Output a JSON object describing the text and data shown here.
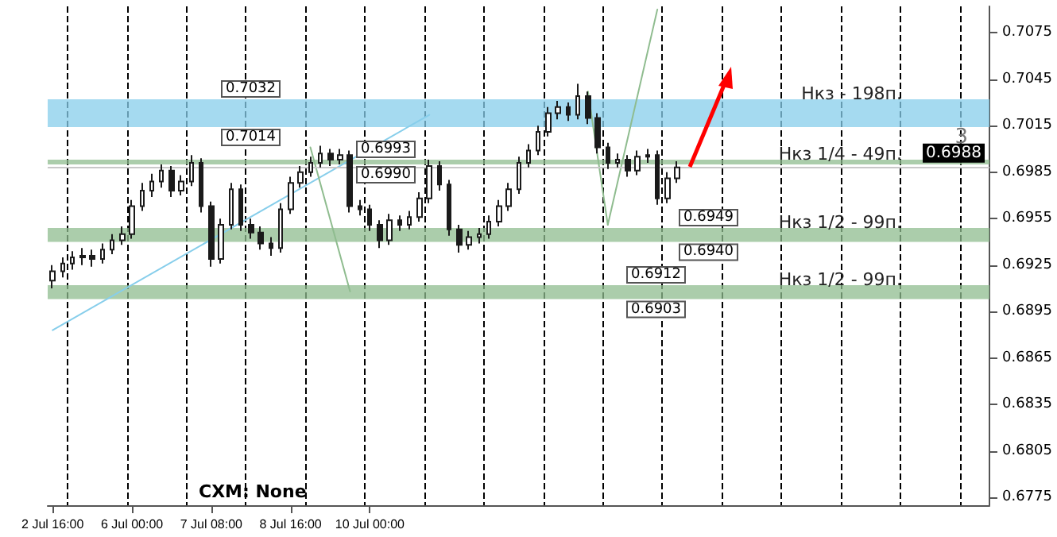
{
  "chart_data": {
    "type": "candlestick",
    "color": "#1a1a1a",
    "categories": [
      "2 Jul 16:00",
      null,
      null,
      null,
      null,
      null,
      null,
      null,
      "6 Jul 00:00",
      null,
      null,
      null,
      null,
      null,
      null,
      null,
      "7 Jul 08:00",
      null,
      null,
      null,
      null,
      null,
      null,
      null,
      "8 Jul 16:00",
      null,
      null,
      null,
      null,
      null,
      null,
      null,
      "10 Jul 00:00",
      null,
      null,
      null,
      null,
      null,
      null,
      null,
      null,
      null,
      null,
      null,
      null,
      null,
      null,
      null,
      null,
      null,
      null,
      null,
      null,
      null,
      null,
      null,
      null,
      null,
      null,
      null,
      null,
      null,
      null,
      null,
      null,
      null,
      null,
      null,
      null,
      null,
      null,
      null,
      null,
      null,
      null,
      null,
      null,
      null,
      null,
      null,
      null,
      null,
      null,
      null,
      null,
      null,
      null,
      null,
      null,
      null,
      null,
      null,
      null,
      null,
      null
    ],
    "ohlc": [
      [
        0.6915,
        0.6925,
        0.691,
        0.6921
      ],
      [
        0.6921,
        0.693,
        0.6917,
        0.6926
      ],
      [
        0.6926,
        0.6934,
        0.6922,
        0.693
      ],
      [
        0.693,
        0.6936,
        0.6925,
        0.6931
      ],
      [
        0.6931,
        0.6935,
        0.6924,
        0.6929
      ],
      [
        0.6929,
        0.6939,
        0.6926,
        0.6935
      ],
      [
        0.6935,
        0.6945,
        0.6932,
        0.6941
      ],
      [
        0.6941,
        0.695,
        0.6938,
        0.6945
      ],
      [
        0.6945,
        0.6967,
        0.6942,
        0.6963
      ],
      [
        0.6963,
        0.6978,
        0.696,
        0.6973
      ],
      [
        0.6973,
        0.6984,
        0.6969,
        0.6979
      ],
      [
        0.6979,
        0.699,
        0.6975,
        0.6986
      ],
      [
        0.6986,
        0.6989,
        0.6969,
        0.6973
      ],
      [
        0.6973,
        0.6983,
        0.697,
        0.6979
      ],
      [
        0.6979,
        0.6996,
        0.6976,
        0.6991
      ],
      [
        0.6991,
        0.6994,
        0.6959,
        0.6963
      ],
      [
        0.6963,
        0.6966,
        0.6924,
        0.6929
      ],
      [
        0.6929,
        0.6955,
        0.6926,
        0.6951
      ],
      [
        0.6951,
        0.6978,
        0.6948,
        0.6974
      ],
      [
        0.6974,
        0.6977,
        0.6947,
        0.6951
      ],
      [
        0.6951,
        0.6955,
        0.6942,
        0.6946
      ],
      [
        0.6946,
        0.695,
        0.6935,
        0.6939
      ],
      [
        0.6939,
        0.6943,
        0.6931,
        0.6936
      ],
      [
        0.6936,
        0.6965,
        0.6933,
        0.6961
      ],
      [
        0.6961,
        0.6982,
        0.6958,
        0.6978
      ],
      [
        0.6978,
        0.6989,
        0.6975,
        0.6985
      ],
      [
        0.6985,
        0.6995,
        0.6982,
        0.6991
      ],
      [
        0.6991,
        0.7002,
        0.6988,
        0.6997
      ],
      [
        0.6997,
        0.7,
        0.6989,
        0.6993
      ],
      [
        0.6993,
        0.7,
        0.699,
        0.6996
      ],
      [
        0.6996,
        0.6999,
        0.6959,
        0.6963
      ],
      [
        0.6963,
        0.6967,
        0.6957,
        0.6961
      ],
      [
        0.6961,
        0.6964,
        0.6947,
        0.6951
      ],
      [
        0.6951,
        0.6954,
        0.6936,
        0.6941
      ],
      [
        0.6941,
        0.6958,
        0.6938,
        0.6954
      ],
      [
        0.6954,
        0.6957,
        0.6947,
        0.6951
      ],
      [
        0.6951,
        0.696,
        0.6948,
        0.6956
      ],
      [
        0.6956,
        0.6972,
        0.6953,
        0.6968
      ],
      [
        0.6968,
        0.6993,
        0.6965,
        0.6989
      ],
      [
        0.6989,
        0.6992,
        0.6973,
        0.6977
      ],
      [
        0.6977,
        0.698,
        0.6944,
        0.6948
      ],
      [
        0.6948,
        0.6951,
        0.6933,
        0.6938
      ],
      [
        0.6938,
        0.6947,
        0.6935,
        0.6943
      ],
      [
        0.6943,
        0.6949,
        0.6939,
        0.6945
      ],
      [
        0.6945,
        0.6957,
        0.6942,
        0.6953
      ],
      [
        0.6953,
        0.6967,
        0.695,
        0.6963
      ],
      [
        0.6963,
        0.6978,
        0.696,
        0.6974
      ],
      [
        0.6974,
        0.6995,
        0.6971,
        0.6991
      ],
      [
        0.6991,
        0.7003,
        0.6988,
        0.6999
      ],
      [
        0.6999,
        0.7015,
        0.6996,
        0.7011
      ],
      [
        0.7011,
        0.7027,
        0.7008,
        0.7023
      ],
      [
        0.7023,
        0.7031,
        0.7019,
        0.7027
      ],
      [
        0.7027,
        0.703,
        0.7018,
        0.7022
      ],
      [
        0.7022,
        0.7042,
        0.7019,
        0.7034
      ],
      [
        0.7034,
        0.7037,
        0.7016,
        0.702
      ],
      [
        0.702,
        0.7023,
        0.6997,
        0.7001
      ],
      [
        0.7001,
        0.7004,
        0.6987,
        0.6991
      ],
      [
        0.6991,
        0.6997,
        0.6988,
        0.6993
      ],
      [
        0.6993,
        0.6996,
        0.6982,
        0.6986
      ],
      [
        0.6986,
        0.6999,
        0.6983,
        0.6995
      ],
      [
        0.6995,
        0.7,
        0.6991,
        0.6996
      ],
      [
        0.6996,
        0.6999,
        0.6964,
        0.6968
      ],
      [
        0.6968,
        0.6985,
        0.6965,
        0.6981
      ],
      [
        0.6981,
        0.6992,
        0.6978,
        0.6988
      ],
      null,
      null,
      null,
      null,
      null,
      null,
      null,
      null,
      null,
      null,
      null,
      null,
      null,
      null,
      null,
      null,
      null,
      null,
      null,
      null,
      null,
      null,
      null,
      null,
      null,
      null,
      null,
      null,
      null,
      null,
      null
    ],
    "series": [
      {
        "type": "line",
        "color": "#87ceeb",
        "values": [
          0.6883,
          null,
          null,
          null,
          null,
          null,
          null,
          null,
          null,
          null,
          null,
          null,
          null,
          null,
          null,
          null,
          null,
          null,
          null,
          null,
          null,
          null,
          null,
          null,
          null,
          null,
          null,
          null,
          null,
          null,
          null,
          null,
          null,
          null,
          null,
          null,
          null,
          null,
          0.7022,
          null,
          null,
          null,
          null,
          null,
          null,
          null,
          null,
          null,
          null,
          null,
          null,
          null,
          null,
          null,
          null,
          null,
          null,
          null,
          null,
          null,
          null,
          null,
          null,
          null,
          null,
          null,
          null,
          null,
          null,
          null,
          null,
          null,
          null,
          null,
          null,
          null,
          null,
          null,
          null,
          null,
          null,
          null,
          null,
          null,
          null,
          null,
          null,
          null,
          null,
          null,
          null,
          null,
          null,
          null,
          null
        ]
      },
      {
        "type": "line",
        "color": "#8fbc8f",
        "values": [
          null,
          null,
          null,
          null,
          null,
          null,
          null,
          null,
          null,
          null,
          null,
          null,
          null,
          null,
          null,
          null,
          null,
          null,
          null,
          null,
          null,
          null,
          null,
          null,
          null,
          null,
          0.7001,
          null,
          null,
          null,
          0.6908,
          null,
          null,
          null,
          null,
          null,
          null,
          null,
          null,
          null,
          null,
          null,
          null,
          null,
          null,
          null,
          null,
          null,
          null,
          null,
          null,
          null,
          null,
          null,
          null,
          null,
          null,
          null,
          null,
          null,
          null,
          null,
          null,
          null,
          null,
          null,
          null,
          null,
          null,
          null,
          null,
          null,
          null,
          null,
          null,
          null,
          null,
          null,
          null,
          null,
          null,
          null,
          null,
          null,
          null,
          null,
          null,
          null,
          null,
          null,
          null,
          null,
          null,
          null,
          null
        ]
      },
      {
        "type": "line",
        "color": "#8fbc8f",
        "values": [
          null,
          null,
          null,
          null,
          null,
          null,
          null,
          null,
          null,
          null,
          null,
          null,
          null,
          null,
          null,
          null,
          null,
          null,
          null,
          null,
          null,
          null,
          null,
          null,
          null,
          null,
          null,
          null,
          null,
          null,
          null,
          null,
          null,
          null,
          null,
          null,
          null,
          null,
          null,
          null,
          null,
          null,
          null,
          null,
          null,
          null,
          null,
          null,
          null,
          null,
          null,
          null,
          null,
          null,
          0.7037,
          null,
          0.6951,
          null,
          null,
          null,
          null,
          null,
          null,
          null,
          null,
          null,
          null,
          null,
          null,
          null,
          null,
          null,
          null,
          null,
          null,
          null,
          null,
          null,
          null,
          null,
          null,
          null,
          null,
          null,
          null,
          null,
          null,
          null,
          null,
          null,
          null,
          null,
          null,
          null,
          null
        ]
      },
      {
        "type": "line",
        "color": "#8fbc8f",
        "values": [
          null,
          null,
          null,
          null,
          null,
          null,
          null,
          null,
          null,
          null,
          null,
          null,
          null,
          null,
          null,
          null,
          null,
          null,
          null,
          null,
          null,
          null,
          null,
          null,
          null,
          null,
          null,
          null,
          null,
          null,
          null,
          null,
          null,
          null,
          null,
          null,
          null,
          null,
          null,
          null,
          null,
          null,
          null,
          null,
          null,
          null,
          null,
          null,
          null,
          null,
          null,
          null,
          null,
          null,
          null,
          null,
          0.6951,
          null,
          null,
          null,
          null,
          0.709,
          null,
          null,
          null,
          null,
          null,
          null,
          null,
          null,
          null,
          null,
          null,
          null,
          null,
          null,
          null,
          null,
          null,
          null,
          null,
          null,
          null,
          null,
          null,
          null,
          null,
          null,
          null,
          null,
          null,
          null,
          null,
          null,
          null
        ]
      }
    ],
    "grid": "x",
    "ylim": [
      0.677,
      0.7092
    ],
    "yticks": [
      0.6775,
      0.6805,
      0.6835,
      0.6865,
      0.6895,
      0.6925,
      0.6955,
      0.6985,
      0.7015,
      0.7045,
      0.7075
    ],
    "ref_lines": [
      {
        "axis": "y",
        "value": 0.6988,
        "label": "0.6988",
        "color": "#c8c8c8",
        "line_style": "solid"
      }
    ],
    "bands": [
      {
        "axis": "y",
        "from": 0.7014,
        "to": 0.7032,
        "label": "Нкз - 198п.",
        "color": "#87ceeb"
      },
      {
        "axis": "y",
        "from": 0.699,
        "to": 0.6993,
        "label": "Нкз 1/4 - 49п.",
        "color": "#8fbc8f"
      },
      {
        "axis": "y",
        "from": 0.694,
        "to": 0.6949,
        "label": "Нкз 1/2 - 99п.",
        "color": "#8fbc8f"
      },
      {
        "axis": "y",
        "from": 0.6903,
        "to": 0.6912,
        "label": "Нкз 1/2 - 99п.",
        "color": "#8fbc8f"
      }
    ],
    "annotations": [
      "CXM: None",
      "3",
      {
        "text": "0.7032",
        "y": 0.7032
      },
      {
        "text": "0.7014",
        "y": 0.7014
      },
      {
        "text": "0.6993",
        "y": 0.6993
      },
      {
        "text": "0.6990",
        "y": 0.699
      },
      {
        "text": "0.6949",
        "y": 0.6949
      },
      {
        "text": "0.6940",
        "y": 0.694
      },
      {
        "text": "0.6912",
        "y": 0.6912
      },
      {
        "text": "0.6903",
        "y": 0.6903
      }
    ]
  }
}
